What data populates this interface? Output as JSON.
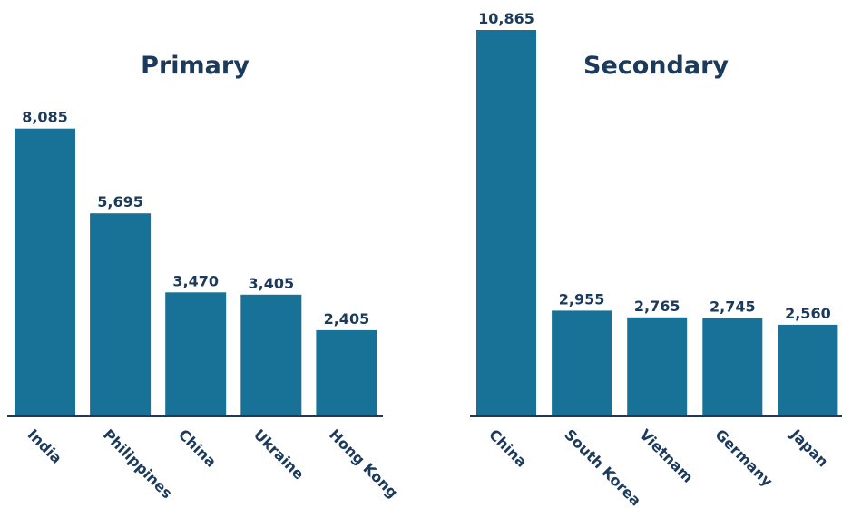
{
  "chart_data": [
    {
      "type": "bar",
      "title": "Primary",
      "xlabel": "",
      "ylabel": "",
      "categories": [
        "India",
        "Philippines",
        "China",
        "Ukraine",
        "Hong Kong"
      ],
      "values": [
        8085,
        5695,
        3470,
        3405,
        2405
      ],
      "value_labels": [
        "8,085",
        "5,695",
        "3,470",
        "3,405",
        "2,405"
      ],
      "ylim": [
        0,
        10865
      ],
      "grid": false,
      "bar_color": "#187297"
    },
    {
      "type": "bar",
      "title": "Secondary",
      "xlabel": "",
      "ylabel": "",
      "categories": [
        "China",
        "South Korea",
        "Vietnam",
        "Germany",
        "Japan"
      ],
      "values": [
        10865,
        2955,
        2765,
        2745,
        2560
      ],
      "value_labels": [
        "10,865",
        "2,955",
        "2,765",
        "2,745",
        "2,560"
      ],
      "ylim": [
        0,
        10865
      ],
      "grid": false,
      "bar_color": "#187297"
    }
  ],
  "colors": {
    "bar": "#187297",
    "text": "#1b3a5c",
    "axis": "#1b3a5c",
    "background": "#ffffff"
  }
}
